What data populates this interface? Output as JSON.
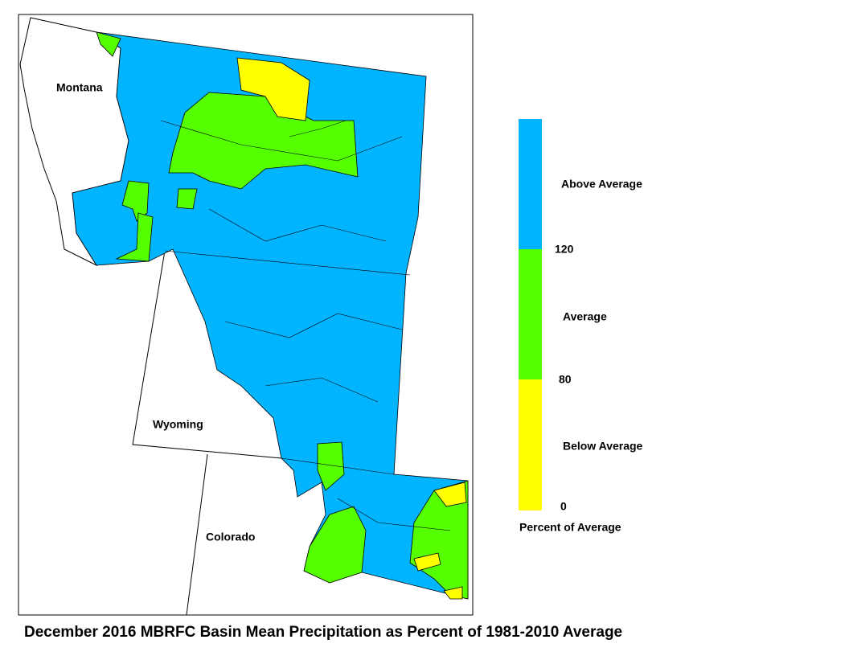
{
  "map": {
    "labels": [
      "Montana",
      "Wyoming",
      "Colorado"
    ]
  },
  "legend": {
    "classes": [
      {
        "label": "Above Average",
        "color": "#00b4ff"
      },
      {
        "label": "Average",
        "color": "#55ff00"
      },
      {
        "label": "Below Average",
        "color": "#ffff00"
      }
    ],
    "ticks": [
      120,
      80,
      0
    ],
    "title": "Percent of Average"
  },
  "caption": "December 2016 MBRFC Basin Mean Precipitation as Percent of 1981-2010 Average"
}
